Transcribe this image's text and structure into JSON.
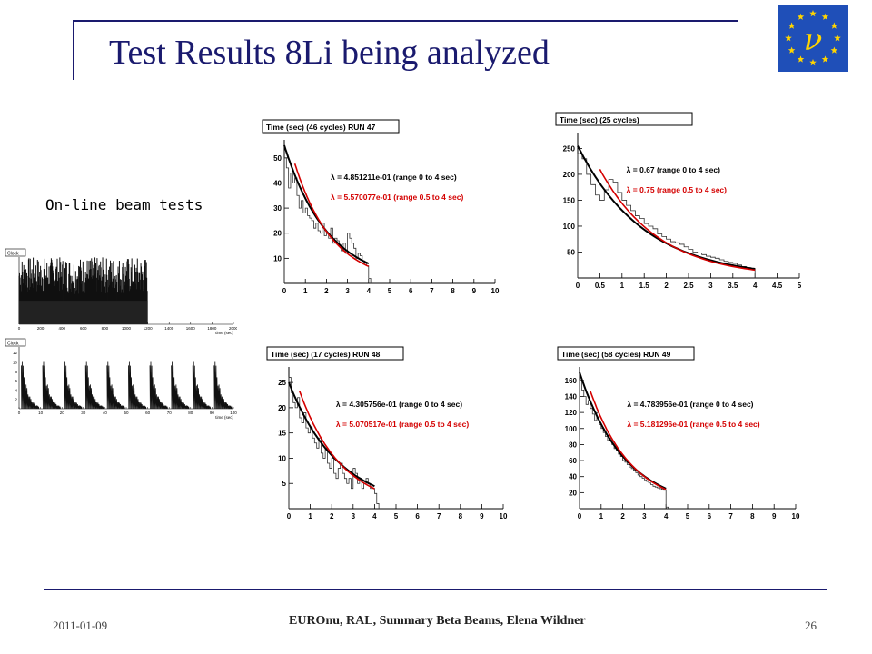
{
  "title": "Test Results 8Li being analyzed",
  "subtitle": "On-line beam tests",
  "footer": {
    "date": "2011-01-09",
    "center": "EUROnu, RAL, Summary Beta Beams, Elena Wildner",
    "page": "26"
  },
  "flag": {
    "symbol": "ν",
    "background": "#1f4fb8",
    "star_color": "#ffd400",
    "symbol_color": "#ffd400"
  },
  "colors": {
    "title": "#1a1a6e",
    "fit_full": "#000000",
    "fit_partial": "#d40000"
  },
  "chart_data": [
    {
      "type": "histogram",
      "title": "Time (sec) (46 cycles) RUN 47",
      "xlim": [
        0,
        10
      ],
      "ylim": [
        0,
        55
      ],
      "xticks": [
        0,
        1,
        2,
        3,
        4,
        5,
        6,
        7,
        8,
        9,
        10
      ],
      "yticks": [
        10,
        20,
        30,
        40,
        50
      ],
      "histogram": {
        "start": 0,
        "bin_width": 0.1,
        "values": [
          50,
          46,
          38,
          44,
          40,
          42,
          35,
          30,
          33,
          28,
          30,
          27,
          26,
          25,
          22,
          24,
          21,
          20,
          24,
          19,
          20,
          18,
          22,
          16,
          18,
          17,
          15,
          13,
          16,
          12,
          20,
          18,
          16,
          14,
          10,
          12,
          11,
          9,
          8,
          7,
          2
        ]
      },
      "fits": [
        {
          "label": "λ = 4.851211e-01 (range 0 to 4 sec)",
          "color": "#000000",
          "amplitude": 55,
          "lambda": 0.4851211,
          "range": [
            0,
            4
          ]
        },
        {
          "label": "λ = 5.570077e-01 (range 0.5 to 4 sec)",
          "color": "#d40000",
          "amplitude": 63,
          "lambda": 0.5570077,
          "range": [
            0.5,
            4
          ]
        }
      ]
    },
    {
      "type": "histogram",
      "title": "Time (sec) (25 cycles)",
      "xlim": [
        0,
        5
      ],
      "ylim": [
        0,
        270
      ],
      "xticks": [
        0,
        0.5,
        1,
        1.5,
        2,
        2.5,
        3,
        3.5,
        4,
        4.5,
        5
      ],
      "yticks": [
        50,
        100,
        150,
        200,
        250
      ],
      "histogram": {
        "start": 0,
        "bin_width": 0.1,
        "values": [
          240,
          230,
          200,
          180,
          160,
          150,
          170,
          190,
          185,
          165,
          150,
          140,
          130,
          120,
          115,
          105,
          100,
          95,
          85,
          80,
          75,
          70,
          68,
          65,
          60,
          55,
          50,
          48,
          45,
          42,
          40,
          38,
          35,
          32,
          30,
          28,
          25,
          22,
          20,
          18
        ]
      },
      "fits": [
        {
          "label": "λ = 0.67 (range 0 to 4 sec)",
          "color": "#000000",
          "amplitude": 255,
          "lambda": 0.67,
          "range": [
            0,
            4
          ]
        },
        {
          "label": "λ = 0.75 (range 0.5 to 4 sec)",
          "color": "#d40000",
          "amplitude": 305,
          "lambda": 0.75,
          "range": [
            0.5,
            4
          ]
        }
      ]
    },
    {
      "type": "histogram",
      "title": "Time (sec) (17 cycles) RUN 48",
      "xlim": [
        0,
        10
      ],
      "ylim": [
        0,
        27
      ],
      "xticks": [
        0,
        1,
        2,
        3,
        4,
        5,
        6,
        7,
        8,
        9,
        10
      ],
      "yticks": [
        5,
        10,
        15,
        20,
        25
      ],
      "histogram": {
        "start": 0,
        "bin_width": 0.1,
        "values": [
          26,
          23,
          21,
          20,
          22,
          18,
          17,
          19,
          16,
          15,
          16,
          14,
          13,
          12,
          14,
          11,
          10,
          12,
          9,
          8,
          10,
          7,
          6,
          8,
          9,
          7,
          6,
          5,
          6,
          4,
          8,
          7,
          5,
          6,
          4,
          5,
          6,
          5,
          4,
          4,
          3,
          1
        ]
      },
      "fits": [
        {
          "label": "λ = 4.305756e-01 (range 0 to 4 sec)",
          "color": "#000000",
          "amplitude": 25,
          "lambda": 0.4305756,
          "range": [
            0,
            4
          ]
        },
        {
          "label": "λ = 5.070517e-01 (range 0.5 to 4 sec)",
          "color": "#d40000",
          "amplitude": 30,
          "lambda": 0.5070517,
          "range": [
            0.5,
            4
          ]
        }
      ]
    },
    {
      "type": "histogram",
      "title": "Time (sec) (58 cycles) RUN 49",
      "xlim": [
        0,
        10
      ],
      "ylim": [
        0,
        170
      ],
      "xticks": [
        0,
        1,
        2,
        3,
        4,
        5,
        6,
        7,
        8,
        9,
        10
      ],
      "yticks": [
        20,
        40,
        60,
        80,
        100,
        120,
        140,
        160
      ],
      "histogram": {
        "start": 0,
        "bin_width": 0.1,
        "values": [
          160,
          148,
          140,
          130,
          135,
          125,
          118,
          110,
          120,
          105,
          100,
          95,
          90,
          85,
          88,
          80,
          75,
          72,
          68,
          65,
          60,
          58,
          55,
          52,
          50,
          48,
          45,
          42,
          40,
          38,
          36,
          34,
          32,
          30,
          28,
          27,
          26,
          25,
          24,
          23,
          2
        ]
      },
      "fits": [
        {
          "label": "λ = 4.783956e-01 (range 0 to 4 sec)",
          "color": "#000000",
          "amplitude": 170,
          "lambda": 0.4783956,
          "range": [
            0,
            4
          ]
        },
        {
          "label": "λ = 5.181296e-01 (range 0.5 to 4 sec)",
          "color": "#d40000",
          "amplitude": 190,
          "lambda": 0.5181296,
          "range": [
            0.5,
            4
          ]
        }
      ]
    },
    {
      "type": "histogram",
      "title": "Clock",
      "xlim": [
        0,
        2000
      ],
      "xticks": [
        0,
        200,
        400,
        600,
        800,
        1000,
        1200,
        1400,
        1600,
        1800,
        2000
      ],
      "yticks": [],
      "xlabel": "time (sec)",
      "pattern": "dense spikes",
      "active_range": [
        0,
        1200
      ]
    },
    {
      "type": "histogram",
      "title": "Clock",
      "xlim": [
        0,
        100
      ],
      "xticks": [
        0,
        10,
        20,
        30,
        40,
        50,
        60,
        70,
        80,
        90,
        100
      ],
      "yticks": [
        2,
        4,
        6,
        8,
        10,
        12
      ],
      "xlabel": "time (sec)",
      "pattern": "periodic decay",
      "period": 10
    }
  ]
}
